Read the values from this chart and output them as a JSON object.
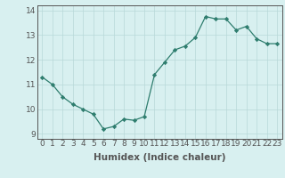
{
  "x": [
    0,
    1,
    2,
    3,
    4,
    5,
    6,
    7,
    8,
    9,
    10,
    11,
    12,
    13,
    14,
    15,
    16,
    17,
    18,
    19,
    20,
    21,
    22,
    23
  ],
  "y": [
    11.3,
    11.0,
    10.5,
    10.2,
    10.0,
    9.8,
    9.2,
    9.3,
    9.6,
    9.55,
    9.7,
    11.4,
    11.9,
    12.4,
    12.55,
    12.9,
    13.75,
    13.65,
    13.65,
    13.2,
    13.35,
    12.85,
    12.65,
    12.65
  ],
  "title": "",
  "xlabel": "Humidex (Indice chaleur)",
  "ylabel": "",
  "xlim": [
    -0.5,
    23.5
  ],
  "ylim": [
    8.8,
    14.2
  ],
  "yticks": [
    9,
    10,
    11,
    12,
    13,
    14
  ],
  "xticks": [
    0,
    1,
    2,
    3,
    4,
    5,
    6,
    7,
    8,
    9,
    10,
    11,
    12,
    13,
    14,
    15,
    16,
    17,
    18,
    19,
    20,
    21,
    22,
    23
  ],
  "line_color": "#2e7d6e",
  "marker_color": "#2e7d6e",
  "bg_color": "#d8f0f0",
  "grid_color": "#b8d8d8",
  "axis_color": "#555555",
  "xlabel_fontsize": 7.5,
  "tick_fontsize": 6.5
}
